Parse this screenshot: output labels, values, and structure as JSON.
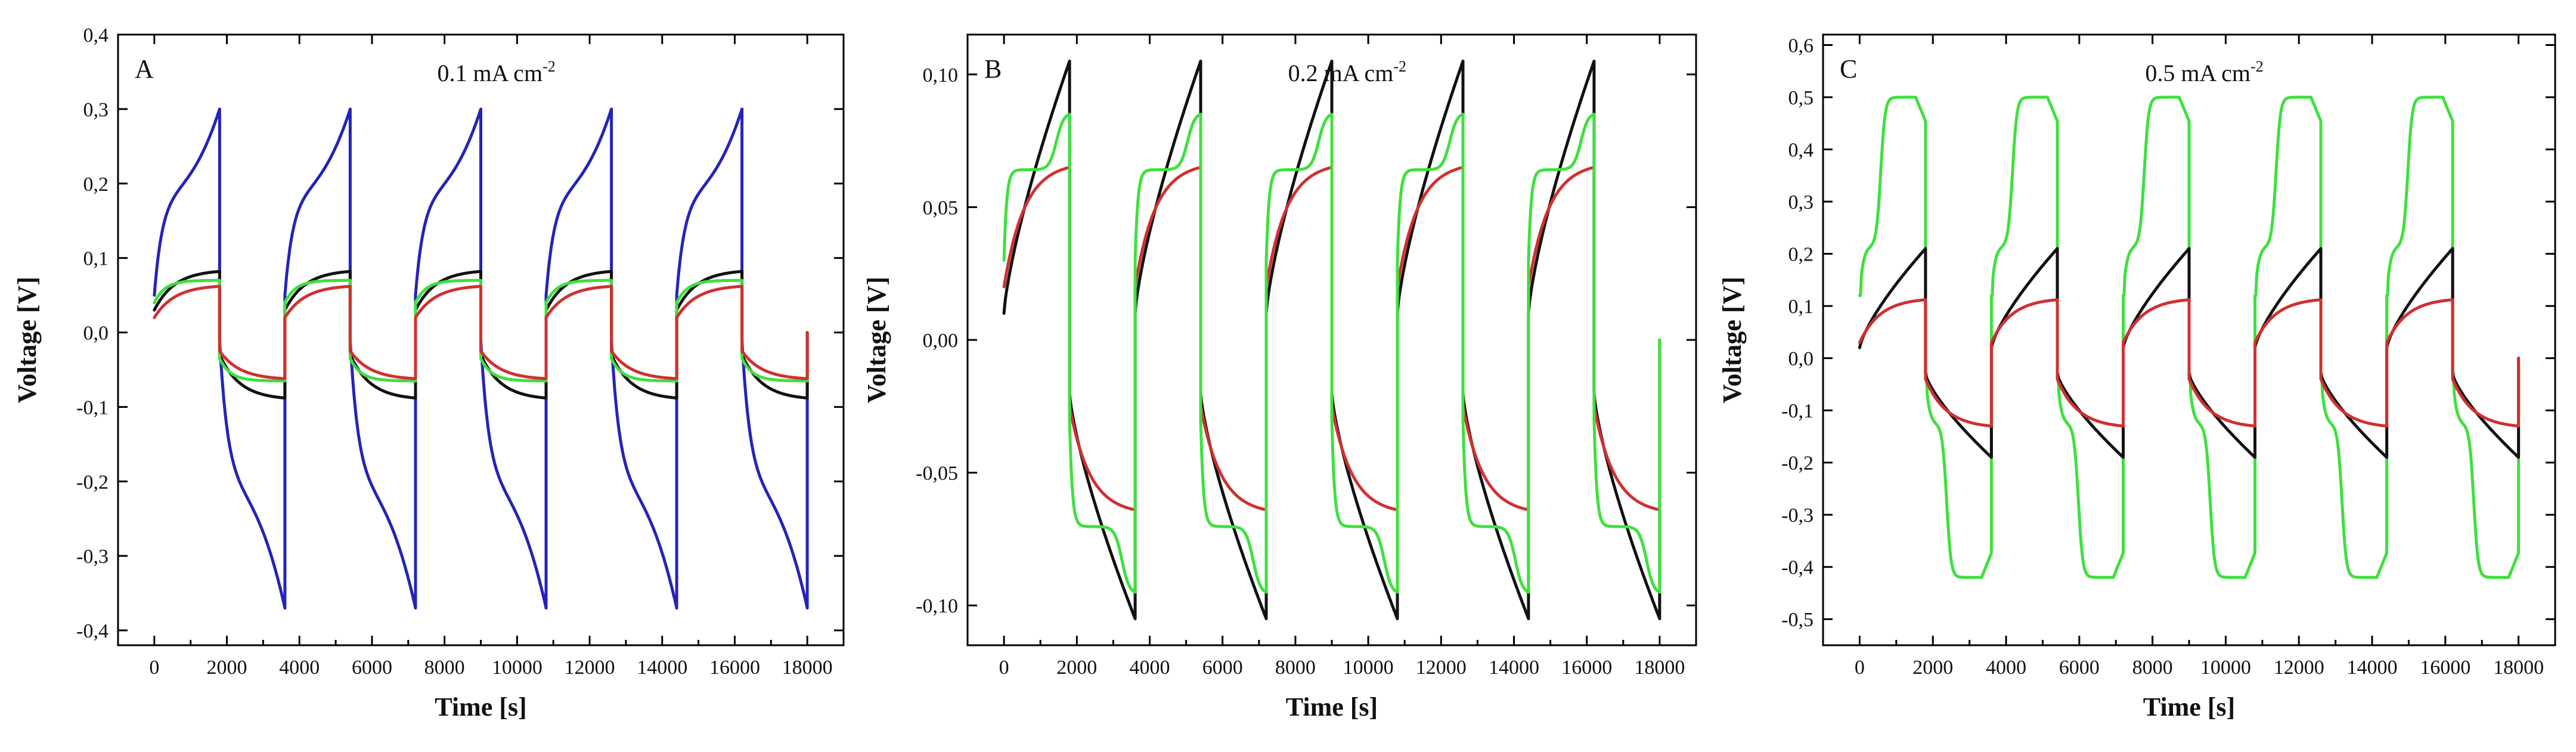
{
  "figure": {
    "series_colors": {
      "black": "#111111",
      "red": "#d03030",
      "green": "#3ee03e",
      "blue": "#2424b8"
    }
  },
  "chart_data": [
    {
      "type": "line",
      "panel": "A",
      "title": "0.1 mA cm",
      "title_sup": "-2",
      "xlabel": "Time [s]",
      "ylabel": "Voltage [V]",
      "xlim": [
        -1000,
        19000
      ],
      "ylim": [
        -0.42,
        0.4
      ],
      "xticks": [
        0,
        2000,
        4000,
        6000,
        8000,
        10000,
        12000,
        14000,
        16000,
        18000
      ],
      "xtick_labels": [
        "0",
        "2000",
        "4000",
        "6000",
        "8000",
        "10000",
        "12000",
        "14000",
        "16000",
        "18000"
      ],
      "yticks": [
        -0.4,
        -0.3,
        -0.2,
        -0.1,
        0.0,
        0.1,
        0.2,
        0.3,
        0.4
      ],
      "ytick_labels": [
        "-0,4",
        "-0,3",
        "-0,2",
        "-0,1",
        "0,0",
        "0,1",
        "0,2",
        "0,3",
        "0,4"
      ],
      "half_cycle_s": 1800,
      "cycles": 5,
      "series": [
        {
          "name": "blue",
          "color": "#2424b8",
          "charge_start": 0.05,
          "charge_end": 0.3,
          "discharge_start": -0.01,
          "discharge_end": -0.37,
          "shape": "s"
        },
        {
          "name": "black",
          "color": "#111111",
          "charge_start": 0.03,
          "charge_end": 0.082,
          "discharge_start": -0.03,
          "discharge_end": -0.088,
          "shape": "exp"
        },
        {
          "name": "green",
          "color": "#3ee03e",
          "charge_start": 0.04,
          "charge_end": 0.07,
          "discharge_start": -0.035,
          "discharge_end": -0.065,
          "shape": "fast"
        },
        {
          "name": "red",
          "color": "#d03030",
          "charge_start": 0.02,
          "charge_end": 0.062,
          "discharge_start": -0.025,
          "discharge_end": -0.062,
          "shape": "exp"
        }
      ]
    },
    {
      "type": "line",
      "panel": "B",
      "title": "0.2 mA cm",
      "title_sup": "-2",
      "xlabel": "Time [s]",
      "ylabel": "Voltage [V]",
      "xlim": [
        -1000,
        19000
      ],
      "ylim": [
        -0.115,
        0.115
      ],
      "xticks": [
        0,
        2000,
        4000,
        6000,
        8000,
        10000,
        12000,
        14000,
        16000,
        18000
      ],
      "xtick_labels": [
        "0",
        "2000",
        "4000",
        "6000",
        "8000",
        "10000",
        "12000",
        "14000",
        "16000",
        "18000"
      ],
      "yticks": [
        -0.1,
        -0.05,
        0.0,
        0.05,
        0.1
      ],
      "ytick_labels": [
        "-0,10",
        "-0,05",
        "0,00",
        "0,05",
        "0,10"
      ],
      "half_cycle_s": 1800,
      "cycles": 5,
      "series": [
        {
          "name": "black",
          "color": "#111111",
          "charge_start": 0.01,
          "charge_end": 0.105,
          "discharge_start": -0.02,
          "discharge_end": -0.105,
          "shape": "lin"
        },
        {
          "name": "red",
          "color": "#d03030",
          "charge_start": 0.02,
          "charge_end": 0.065,
          "discharge_start": -0.025,
          "discharge_end": -0.064,
          "shape": "exp"
        },
        {
          "name": "green",
          "color": "#3ee03e",
          "charge_start": 0.03,
          "charge_end": 0.085,
          "discharge_start": -0.03,
          "discharge_end": -0.095,
          "shape": "step"
        }
      ]
    },
    {
      "type": "line",
      "panel": "C",
      "title": "0.5 mA cm",
      "title_sup": "-2",
      "xlabel": "Time [s]",
      "ylabel": "Voltage [V]",
      "xlim": [
        -1000,
        19000
      ],
      "ylim": [
        -0.55,
        0.62
      ],
      "xticks": [
        0,
        2000,
        4000,
        6000,
        8000,
        10000,
        12000,
        14000,
        16000,
        18000
      ],
      "xtick_labels": [
        "0",
        "2000",
        "4000",
        "6000",
        "8000",
        "10000",
        "12000",
        "14000",
        "16000",
        "18000"
      ],
      "yticks": [
        -0.5,
        -0.4,
        -0.3,
        -0.2,
        -0.1,
        0.0,
        0.1,
        0.2,
        0.3,
        0.4,
        0.5,
        0.6
      ],
      "ytick_labels": [
        "-0,5",
        "-0,4",
        "-0,3",
        "-0,2",
        "-0,1",
        "0,0",
        "0,1",
        "0,2",
        "0,3",
        "0,4",
        "0,5",
        "0,6"
      ],
      "half_cycle_s": 1800,
      "cycles": 5,
      "series": [
        {
          "name": "green",
          "color": "#3ee03e",
          "charge_start": 0.12,
          "charge_end": 0.5,
          "discharge_start": -0.03,
          "discharge_end": -0.42,
          "shape": "plateau"
        },
        {
          "name": "black",
          "color": "#111111",
          "charge_start": 0.02,
          "charge_end": 0.21,
          "discharge_start": -0.03,
          "discharge_end": -0.19,
          "shape": "lin"
        },
        {
          "name": "red",
          "color": "#d03030",
          "charge_start": 0.03,
          "charge_end": 0.112,
          "discharge_start": -0.04,
          "discharge_end": -0.13,
          "shape": "exp"
        }
      ]
    }
  ]
}
